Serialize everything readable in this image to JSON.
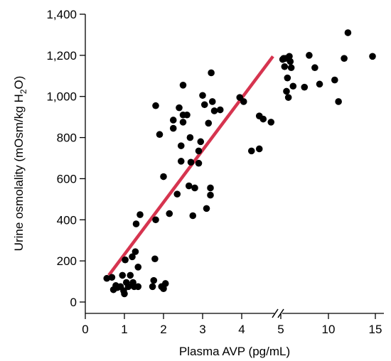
{
  "chart_data": {
    "type": "scatter",
    "title": "",
    "xlabel": "Plasma AVP (pg/mL)",
    "ylabel": {
      "prefix": "Urine osmolality (mOsm/kg H",
      "sub": "2",
      "suffix": "O)"
    },
    "xaxis": {
      "broken": true,
      "linear_segment": [
        0,
        5
      ],
      "compressed_segment": [
        5,
        15
      ],
      "break_between": [
        4.7,
        5
      ],
      "ticks": [
        0,
        1,
        2,
        3,
        4,
        5,
        10,
        15
      ],
      "tick_labels": [
        "0",
        "1",
        "2",
        "3",
        "4",
        "5",
        "10",
        "15"
      ]
    },
    "yaxis": {
      "ylim": [
        -50,
        1400
      ],
      "ticks": [
        0,
        200,
        400,
        600,
        800,
        1000,
        1200,
        1400
      ],
      "tick_labels": [
        "0",
        "200",
        "400",
        "600",
        "800",
        "1,000",
        "1,200",
        "1,400"
      ]
    },
    "grid": false,
    "legend": "none",
    "colors": {
      "points": "#000000",
      "fit_line": "#d6344f"
    },
    "series": [
      {
        "kind": "points",
        "points": [
          [
            0.55,
            115
          ],
          [
            0.68,
            120
          ],
          [
            0.72,
            60
          ],
          [
            0.78,
            80
          ],
          [
            0.82,
            70
          ],
          [
            0.9,
            75
          ],
          [
            0.95,
            130
          ],
          [
            0.98,
            55
          ],
          [
            1.0,
            40
          ],
          [
            1.02,
            205
          ],
          [
            1.05,
            95
          ],
          [
            1.1,
            75
          ],
          [
            1.15,
            130
          ],
          [
            1.2,
            220
          ],
          [
            1.22,
            95
          ],
          [
            1.25,
            75
          ],
          [
            1.28,
            245
          ],
          [
            1.3,
            380
          ],
          [
            1.35,
            75
          ],
          [
            1.35,
            170
          ],
          [
            1.4,
            425
          ],
          [
            1.72,
            75
          ],
          [
            1.75,
            105
          ],
          [
            1.78,
            210
          ],
          [
            1.8,
            400
          ],
          [
            1.8,
            955
          ],
          [
            1.9,
            815
          ],
          [
            1.95,
            75
          ],
          [
            2.0,
            610
          ],
          [
            2.0,
            65
          ],
          [
            2.05,
            90
          ],
          [
            2.15,
            430
          ],
          [
            2.25,
            845
          ],
          [
            2.25,
            885
          ],
          [
            2.35,
            525
          ],
          [
            2.4,
            945
          ],
          [
            2.45,
            760
          ],
          [
            2.45,
            685
          ],
          [
            2.5,
            910
          ],
          [
            2.5,
            1055
          ],
          [
            2.5,
            875
          ],
          [
            2.6,
            910
          ],
          [
            2.65,
            565
          ],
          [
            2.68,
            800
          ],
          [
            2.7,
            680
          ],
          [
            2.75,
            420
          ],
          [
            2.8,
            555
          ],
          [
            2.9,
            735
          ],
          [
            2.9,
            675
          ],
          [
            2.95,
            780
          ],
          [
            3.0,
            1005
          ],
          [
            3.05,
            960
          ],
          [
            3.1,
            455
          ],
          [
            3.15,
            870
          ],
          [
            3.2,
            520
          ],
          [
            3.2,
            555
          ],
          [
            3.22,
            1115
          ],
          [
            3.25,
            975
          ],
          [
            3.3,
            930
          ],
          [
            3.45,
            935
          ],
          [
            3.95,
            995
          ],
          [
            4.05,
            975
          ],
          [
            4.25,
            735
          ],
          [
            4.45,
            745
          ],
          [
            4.45,
            905
          ],
          [
            4.55,
            890
          ],
          [
            4.75,
            875
          ],
          [
            5.2,
            1180
          ],
          [
            5.3,
            1185
          ],
          [
            5.4,
            1145
          ],
          [
            5.5,
            1185
          ],
          [
            5.6,
            1025
          ],
          [
            5.7,
            1090
          ],
          [
            5.8,
            995
          ],
          [
            5.9,
            1195
          ],
          [
            6.0,
            1170
          ],
          [
            6.1,
            1140
          ],
          [
            6.3,
            1050
          ],
          [
            7.5,
            1045
          ],
          [
            8.0,
            1200
          ],
          [
            8.6,
            1140
          ],
          [
            9.1,
            1060
          ],
          [
            10.7,
            1080
          ],
          [
            11.1,
            975
          ],
          [
            11.7,
            1185
          ],
          [
            12.1,
            1310
          ],
          [
            14.7,
            1195
          ]
        ]
      },
      {
        "kind": "fit_line",
        "points": [
          [
            0.6,
            130
          ],
          [
            4.8,
            1195
          ]
        ]
      }
    ]
  }
}
